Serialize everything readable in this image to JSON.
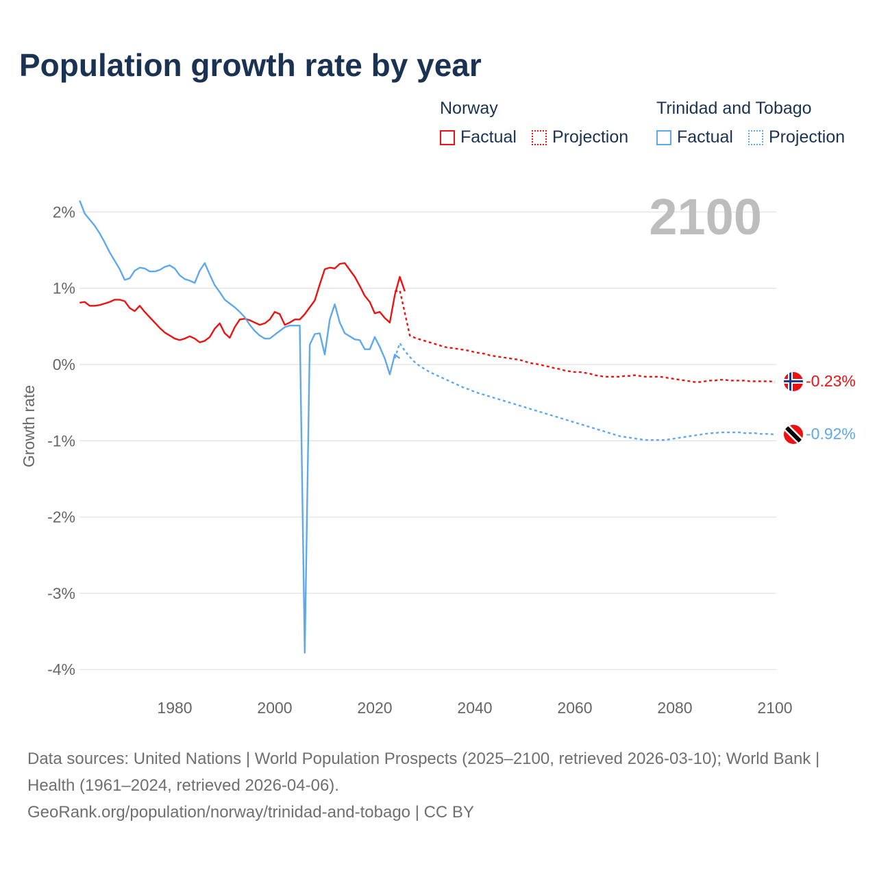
{
  "title": "Population growth rate by year",
  "legend": {
    "groups": [
      {
        "name": "Norway",
        "factual": "Factual",
        "projection": "Projection",
        "color": "#ee1111"
      },
      {
        "name": "Trinidad and Tobago",
        "factual": "Factual",
        "projection": "Projection",
        "color": "#5ea8ec"
      }
    ]
  },
  "year_label": "2100",
  "end_labels": {
    "norway": "-0.23%",
    "trinidad": "-0.92%"
  },
  "source": {
    "line1": "Data sources: United Nations | World Population Prospects (2025–2100, retrieved 2026-03-10); World Bank | Health (1961–2024, retrieved 2026-04-06).",
    "line2": "GeoRank.org/population/norway/trinidad-and-tobago | CC BY"
  },
  "chart_data": {
    "type": "line",
    "title": "Population growth rate by year",
    "ylabel": "Growth rate",
    "xlim": [
      1961,
      2100
    ],
    "ylim": [
      -4.3,
      2.2
    ],
    "xticks": [
      1980,
      2000,
      2020,
      2040,
      2060,
      2080,
      2100
    ],
    "xtick_labels": [
      "1980",
      "2000",
      "2020",
      "2040",
      "2060",
      "2080",
      "2100"
    ],
    "yticks": [
      2,
      1,
      0,
      -1,
      -2,
      -3,
      -4
    ],
    "ytick_labels": [
      "2%",
      "1%",
      "0%",
      "-1%",
      "-2%",
      "-3%",
      "-4%"
    ],
    "grid": true,
    "legend_position": "top-right",
    "series": [
      {
        "name": "Norway Factual",
        "color": "#ee1111",
        "dashed": false,
        "start": 1961,
        "values": [
          0.81,
          0.82,
          0.77,
          0.77,
          0.78,
          0.8,
          0.82,
          0.85,
          0.85,
          0.83,
          0.74,
          0.7,
          0.77,
          0.69,
          0.62,
          0.55,
          0.48,
          0.42,
          0.38,
          0.34,
          0.32,
          0.34,
          0.37,
          0.34,
          0.29,
          0.31,
          0.36,
          0.47,
          0.54,
          0.41,
          0.35,
          0.49,
          0.59,
          0.6,
          0.58,
          0.55,
          0.52,
          0.54,
          0.59,
          0.69,
          0.66,
          0.52,
          0.55,
          0.59,
          0.59,
          0.66,
          0.75,
          0.84,
          1.05,
          1.25,
          1.27,
          1.26,
          1.32,
          1.33,
          1.24,
          1.15,
          1.03,
          0.9,
          0.82,
          0.67,
          0.69,
          0.61,
          0.55,
          0.91,
          1.15,
          0.96
        ]
      },
      {
        "name": "Norway Projection",
        "color": "#ee1111",
        "dashed": true,
        "start": 2024,
        "values": [
          0.96,
          0.97,
          0.68,
          0.38,
          0.35,
          0.33,
          0.31,
          0.29,
          0.27,
          0.25,
          0.23,
          0.22,
          0.21,
          0.2,
          0.19,
          0.18,
          0.16,
          0.15,
          0.14,
          0.12,
          0.11,
          0.1,
          0.09,
          0.08,
          0.07,
          0.06,
          0.04,
          0.02,
          0.01,
          0.0,
          -0.02,
          -0.03,
          -0.05,
          -0.06,
          -0.08,
          -0.09,
          -0.1,
          -0.1,
          -0.11,
          -0.12,
          -0.14,
          -0.15,
          -0.16,
          -0.16,
          -0.16,
          -0.16,
          -0.15,
          -0.15,
          -0.14,
          -0.15,
          -0.16,
          -0.16,
          -0.16,
          -0.16,
          -0.17,
          -0.18,
          -0.19,
          -0.2,
          -0.21,
          -0.22,
          -0.23,
          -0.23,
          -0.22,
          -0.21,
          -0.21,
          -0.2,
          -0.2,
          -0.21,
          -0.21,
          -0.21,
          -0.21,
          -0.22,
          -0.22,
          -0.22,
          -0.22,
          -0.22,
          -0.23
        ]
      },
      {
        "name": "Trinidad and Tobago Factual",
        "color": "#5ea8ec",
        "dashed": false,
        "start": 1961,
        "values": [
          2.15,
          1.98,
          1.9,
          1.82,
          1.72,
          1.6,
          1.47,
          1.36,
          1.25,
          1.11,
          1.13,
          1.23,
          1.27,
          1.26,
          1.22,
          1.22,
          1.24,
          1.28,
          1.3,
          1.26,
          1.17,
          1.12,
          1.1,
          1.07,
          1.23,
          1.33,
          1.18,
          1.04,
          0.95,
          0.85,
          0.8,
          0.75,
          0.69,
          0.62,
          0.52,
          0.44,
          0.38,
          0.34,
          0.34,
          0.39,
          0.44,
          0.49,
          0.51,
          0.51,
          0.51,
          -3.78,
          0.26,
          0.4,
          0.41,
          0.13,
          0.59,
          0.79,
          0.55,
          0.41,
          0.37,
          0.33,
          0.32,
          0.2,
          0.2,
          0.36,
          0.23,
          0.08,
          -0.13,
          0.13,
          0.08
        ]
      },
      {
        "name": "Trinidad and Tobago Projection",
        "color": "#5ea8ec",
        "dashed": true,
        "start": 2024,
        "values": [
          0.08,
          0.28,
          0.18,
          0.1,
          0.03,
          -0.02,
          -0.06,
          -0.1,
          -0.13,
          -0.16,
          -0.19,
          -0.22,
          -0.25,
          -0.28,
          -0.31,
          -0.33,
          -0.36,
          -0.38,
          -0.4,
          -0.42,
          -0.44,
          -0.46,
          -0.48,
          -0.5,
          -0.52,
          -0.54,
          -0.56,
          -0.58,
          -0.6,
          -0.62,
          -0.64,
          -0.66,
          -0.68,
          -0.7,
          -0.72,
          -0.74,
          -0.76,
          -0.78,
          -0.8,
          -0.82,
          -0.84,
          -0.86,
          -0.88,
          -0.9,
          -0.92,
          -0.94,
          -0.95,
          -0.96,
          -0.97,
          -0.98,
          -0.99,
          -0.99,
          -0.99,
          -0.99,
          -0.99,
          -0.98,
          -0.97,
          -0.96,
          -0.95,
          -0.94,
          -0.93,
          -0.92,
          -0.91,
          -0.9,
          -0.9,
          -0.89,
          -0.89,
          -0.89,
          -0.89,
          -0.89,
          -0.9,
          -0.9,
          -0.9,
          -0.91,
          -0.91,
          -0.91,
          -0.92
        ]
      }
    ]
  }
}
